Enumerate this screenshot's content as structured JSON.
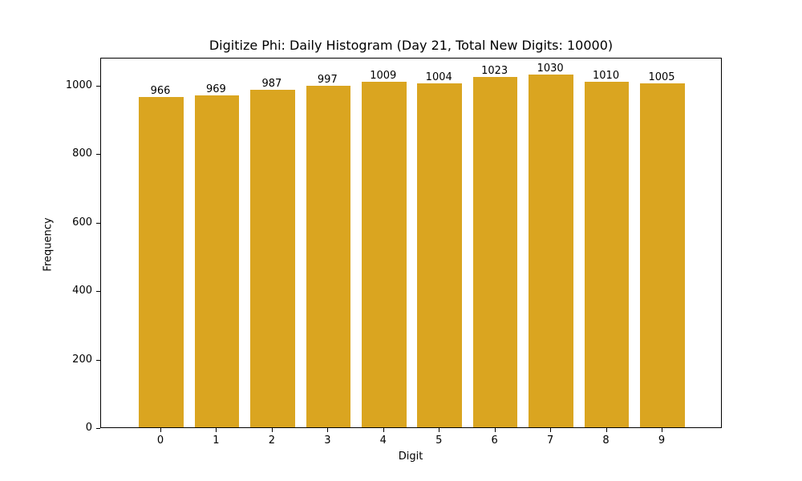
{
  "chart_data": {
    "type": "bar",
    "title": "Digitize Phi: Daily Histogram (Day 21, Total New Digits: 10000)",
    "xlabel": "Digit",
    "ylabel": "Frequency",
    "categories": [
      "0",
      "1",
      "2",
      "3",
      "4",
      "5",
      "6",
      "7",
      "8",
      "9"
    ],
    "values": [
      966,
      969,
      987,
      997,
      1009,
      1004,
      1023,
      1030,
      1010,
      1005
    ],
    "ylim": [
      0,
      1082
    ],
    "yticks": [
      0,
      200,
      400,
      600,
      800,
      1000
    ],
    "bar_color": "#DAA520",
    "grid": false,
    "legend": null,
    "data_labels": true
  }
}
